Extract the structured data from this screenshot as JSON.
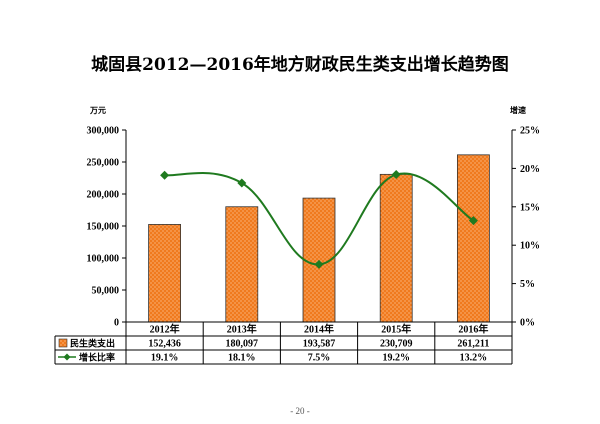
{
  "page": {
    "title": "城固县2012—2016年地方财政民生类支出增长趋势图",
    "page_number": "- 20 -"
  },
  "chart_data": {
    "type": "bar",
    "title": "城固县2012—2016年地方财政民生类支出增长趋势图",
    "categories": [
      "2012年",
      "2013年",
      "2014年",
      "2015年",
      "2016年"
    ],
    "y_left": {
      "unit": "万元",
      "ylim": [
        0,
        300000
      ],
      "ticks": [
        0,
        50000,
        100000,
        150000,
        200000,
        250000,
        300000
      ],
      "tick_labels": [
        "0",
        "50,000",
        "100,000",
        "150,000",
        "200,000",
        "250,000",
        "300,000"
      ]
    },
    "y_right": {
      "unit": "增速",
      "ylim": [
        0,
        25
      ],
      "ticks": [
        0,
        5,
        10,
        15,
        20,
        25
      ],
      "tick_labels": [
        "0%",
        "5%",
        "10%",
        "15%",
        "20%",
        "25%"
      ]
    },
    "series": [
      {
        "name": "民生类支出",
        "type": "bar",
        "axis": "left",
        "values": [
          152436,
          180097,
          193587,
          230709,
          261211
        ],
        "labels": [
          "152,436",
          "180,097",
          "193,587",
          "230,709",
          "261,211"
        ]
      },
      {
        "name": "增长比率",
        "type": "line",
        "axis": "right",
        "values": [
          19.1,
          18.1,
          7.5,
          19.2,
          13.2
        ],
        "labels": [
          "19.1%",
          "18.1%",
          "7.5%",
          "19.2%",
          "13.2%"
        ]
      }
    ],
    "grid": false,
    "legend": "data-table-below"
  },
  "colors": {
    "bar_fill": "#f07a1e",
    "bar_stroke": "#333333",
    "line": "#1f7a1f",
    "marker": "#1f7a1f"
  }
}
